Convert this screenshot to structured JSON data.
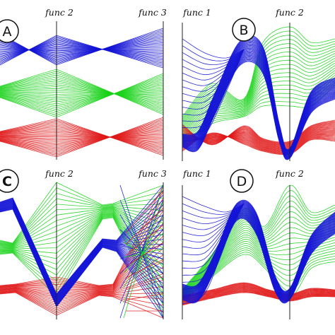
{
  "panels": [
    {
      "badge": "A",
      "axis_labels": [
        "func 2",
        "func 3"
      ],
      "curves": [
        {
          "color": "blue",
          "series": "A-blue"
        },
        {
          "color": "green",
          "series": "A-green"
        },
        {
          "color": "red",
          "series": "A-red"
        }
      ]
    },
    {
      "badge": "B",
      "axis_labels": [
        "func 1",
        "func 2"
      ],
      "curves": [
        {
          "color": "blue",
          "series": "B-blue"
        },
        {
          "color": "green",
          "series": "B-green"
        },
        {
          "color": "red",
          "series": "B-red"
        }
      ]
    },
    {
      "badge": "C",
      "axis_labels": [
        "func 2",
        "func 3"
      ],
      "curves": [
        {
          "color": "blue",
          "series": "C-blue"
        },
        {
          "color": "green",
          "series": "C-green"
        },
        {
          "color": "red",
          "series": "C-red"
        }
      ]
    },
    {
      "badge": "D",
      "axis_labels": [
        "func 1",
        "func 2"
      ],
      "curves": [
        {
          "color": "blue",
          "series": "D-blue"
        },
        {
          "color": "green",
          "series": "D-green"
        },
        {
          "color": "red",
          "series": "D-red"
        }
      ]
    }
  ],
  "colors": {
    "blue": "#1414d6",
    "green": "#19d319",
    "red": "#e01818",
    "axis": "#222222",
    "badge_fill": "#ffffff",
    "badge_stroke": "#111111"
  }
}
